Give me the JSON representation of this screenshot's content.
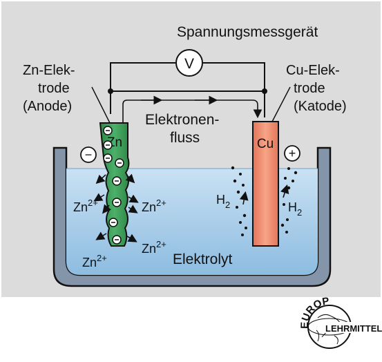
{
  "labels": {
    "meter_title": "Spannungsmessgerät",
    "meter_symbol": "V",
    "zn_label_1": "Zn-Elek-",
    "zn_label_2": "trode",
    "zn_label_3": "(Anode)",
    "cu_label_1": "Cu-Elek-",
    "cu_label_2": "trode",
    "cu_label_3": "(Katode)",
    "flow_1": "Elektronen-",
    "flow_2": "fluss",
    "zn_symbol": "Zn",
    "cu_symbol": "Cu",
    "minus_sign": "−",
    "plus_sign": "+",
    "zn_ion": "Zn",
    "zn_charge": "2+",
    "h2": "H",
    "h2_sub": "2",
    "electrolyte": "Elektrolyt"
  },
  "logo": {
    "top_text": "EUROPA",
    "bottom_text": "LEHRMITTEL"
  },
  "colors": {
    "panel": "#dcdcdc",
    "electrolyte": "#a9cde8",
    "vessel": "#8494a9",
    "zinc": "#3a9a55",
    "copper": "#f08c6c"
  }
}
